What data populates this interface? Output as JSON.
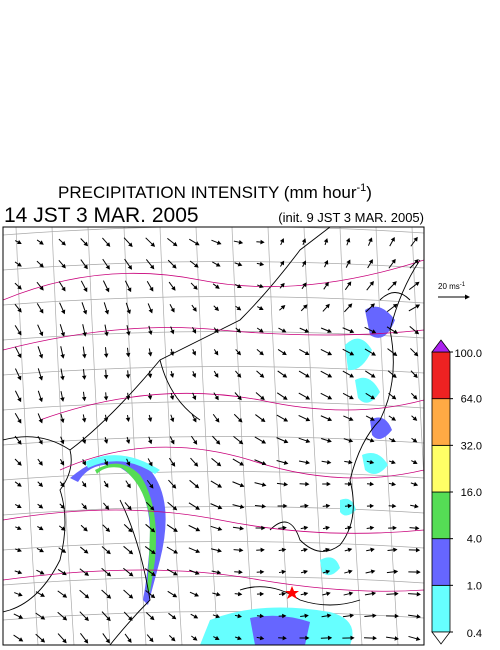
{
  "header": {
    "title": "PRECIPITATION INTENSITY (mm hour",
    "title_sup": "-1",
    "title_close": ")",
    "valid_time": "14 JST 3 MAR. 2005",
    "init_time": "(init. 9 JST 3 MAR. 2005)"
  },
  "wind_scale": {
    "label": "20 ms",
    "label_sup": "-1"
  },
  "colorbar": {
    "levels": [
      {
        "value": 0.4,
        "label": "0.4"
      },
      {
        "value": 1,
        "label": "1.0"
      },
      {
        "value": 4,
        "label": "4.0"
      },
      {
        "value": 16,
        "label": "16.0"
      },
      {
        "value": 32,
        "label": "32.0"
      },
      {
        "value": 64,
        "label": "64.0"
      },
      {
        "value": 100,
        "label": "100.0"
      }
    ],
    "colors": [
      "#66ffff",
      "#6666ff",
      "#55dd55",
      "#ffff66",
      "#ffaa44",
      "#ee2222"
    ],
    "under_color": "#ffffff",
    "over_color": "#aa22ee"
  }
}
